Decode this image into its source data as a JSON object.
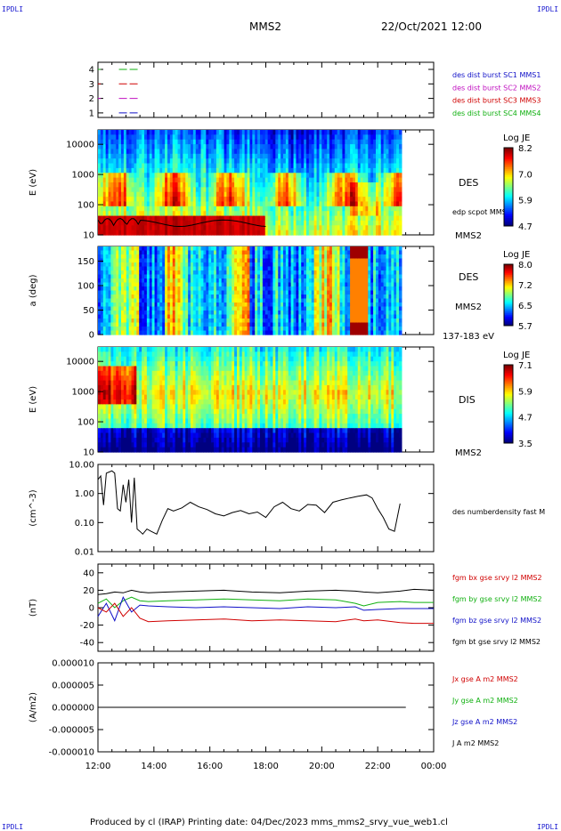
{
  "header": {
    "corner_label": "IPDLI",
    "spacecraft": "MMS2",
    "datetime": "22/Oct/2021 12:00"
  },
  "footer": {
    "text": "Produced by cl (IRAP)   Printing date: 04/Dec/2023   mms_mms2_srvy_vue_web1.cl"
  },
  "colors": {
    "c1": "#1010c8",
    "c2": "#c010c0",
    "c3": "#d00000",
    "c4": "#10b010",
    "black": "#000000"
  },
  "chart_data": [
    {
      "type": "line",
      "panel": "burst-availability",
      "yticks": [
        "4",
        "3",
        "2",
        "1"
      ],
      "legend": [
        {
          "name": "des dist burst SC1 MMS1",
          "color_key": "c1"
        },
        {
          "name": "des dist burst SC2 MMS2",
          "color_key": "c2"
        },
        {
          "name": "des dist burst SC3 MMS3",
          "color_key": "c3"
        },
        {
          "name": "des dist burst SC4 MMS4",
          "color_key": "c4"
        }
      ],
      "series": [
        {
          "level": 4,
          "color_key": "c4",
          "segments": [
            [
              12.0,
              12.1
            ],
            [
              12.75,
              13.5
            ]
          ]
        },
        {
          "level": 3,
          "color_key": "c3",
          "segments": [
            [
              12.0,
              12.1
            ],
            [
              12.75,
              13.5
            ]
          ]
        },
        {
          "level": 2,
          "color_key": "c2",
          "segments": [
            [
              12.0,
              12.1
            ],
            [
              12.75,
              13.5
            ]
          ]
        },
        {
          "level": 1,
          "color_key": "c1",
          "segments": [
            [
              12.75,
              13.5
            ]
          ]
        }
      ]
    },
    {
      "type": "heatmap",
      "panel": "des-energy",
      "ylabel": "E (eV)",
      "yscale": "log",
      "ylim": [
        10,
        30000
      ],
      "yticks": [
        "10000",
        "1000",
        "100",
        "10"
      ],
      "label": "DES",
      "overlay_label": "edp scpot MMS2",
      "sc_label": "MMS2",
      "colorbar": {
        "title": "Log JE",
        "ticks": [
          "8.2",
          "7.0",
          "5.9",
          "4.7"
        ]
      }
    },
    {
      "type": "heatmap",
      "panel": "des-pitch-angle",
      "ylabel": "a (deg)",
      "ylim": [
        0,
        180
      ],
      "yticks": [
        "150",
        "100",
        "50",
        "0"
      ],
      "label": "DES",
      "sc_label": "MMS2",
      "energy_label": "137-183 eV",
      "colorbar": {
        "title": "Log JE",
        "ticks": [
          "8.0",
          "7.2",
          "6.5",
          "5.7"
        ]
      }
    },
    {
      "type": "heatmap",
      "panel": "dis-energy",
      "ylabel": "E (eV)",
      "yscale": "log",
      "ylim": [
        10,
        30000
      ],
      "yticks": [
        "10000",
        "1000",
        "100",
        "10"
      ],
      "label": "DIS",
      "sc_label": "MMS2",
      "colorbar": {
        "title": "Log JE",
        "ticks": [
          "7.1",
          "5.9",
          "4.7",
          "3.5"
        ]
      }
    },
    {
      "type": "line",
      "panel": "density",
      "ylabel": "(cm^-3)",
      "yscale": "log",
      "ylim": [
        0.01,
        10
      ],
      "yticks": [
        "10.00",
        "1.00",
        "0.10",
        "0.01"
      ],
      "legend": [
        {
          "name": "des numberdensity fast M",
          "color_key": "black"
        }
      ],
      "x": [
        12.0,
        12.1,
        12.2,
        12.3,
        12.4,
        12.5,
        12.6,
        12.7,
        12.8,
        12.9,
        13.0,
        13.1,
        13.2,
        13.3,
        13.4,
        13.5,
        13.6,
        13.75,
        13.9,
        14.1,
        14.3,
        14.5,
        14.7,
        15.0,
        15.3,
        15.6,
        15.9,
        16.2,
        16.5,
        16.8,
        17.1,
        17.4,
        17.7,
        18.0,
        18.3,
        18.6,
        18.9,
        19.2,
        19.5,
        19.8,
        20.1,
        20.4,
        20.7,
        21.0,
        21.3,
        21.6,
        21.8,
        22.0,
        22.2,
        22.4,
        22.6,
        22.8
      ],
      "values": [
        3.0,
        4.0,
        0.4,
        5.0,
        5.5,
        6.0,
        5.0,
        0.3,
        0.25,
        2.0,
        0.5,
        3.0,
        0.1,
        3.5,
        0.06,
        0.05,
        0.04,
        0.06,
        0.05,
        0.04,
        0.12,
        0.3,
        0.25,
        0.32,
        0.5,
        0.35,
        0.28,
        0.2,
        0.17,
        0.22,
        0.26,
        0.2,
        0.23,
        0.15,
        0.35,
        0.5,
        0.3,
        0.25,
        0.42,
        0.4,
        0.22,
        0.5,
        0.6,
        0.7,
        0.8,
        0.9,
        0.7,
        0.3,
        0.15,
        0.06,
        0.05,
        0.45
      ]
    },
    {
      "type": "line",
      "panel": "magnetic-field",
      "ylabel": "(nT)",
      "ylim": [
        -50,
        50
      ],
      "yticks": [
        "40",
        "20",
        "0",
        "-20",
        "-40"
      ],
      "x": [
        12.0,
        12.3,
        12.6,
        12.9,
        13.2,
        13.5,
        13.8,
        14.5,
        15.5,
        16.5,
        17.5,
        18.5,
        19.5,
        20.5,
        21.2,
        21.5,
        22.0,
        22.8,
        23.3,
        24.0
      ],
      "series": [
        {
          "name": "fgm bx gse srvy l2 MMS2",
          "color_key": "c3",
          "values": [
            0,
            -5,
            5,
            -10,
            0,
            -12,
            -16,
            -15,
            -14,
            -13,
            -15,
            -14,
            -15,
            -16,
            -13,
            -15,
            -14,
            -17,
            -18,
            -18
          ]
        },
        {
          "name": "fgm by gse srvy l2 MMS2",
          "color_key": "c4",
          "values": [
            5,
            10,
            0,
            8,
            12,
            8,
            7,
            8,
            9,
            10,
            9,
            8,
            10,
            9,
            5,
            2,
            6,
            7,
            6,
            6
          ]
        },
        {
          "name": "fgm bz gse srvy l2 MMS2",
          "color_key": "c1",
          "values": [
            -10,
            5,
            -15,
            12,
            -5,
            3,
            2,
            1,
            0,
            1,
            0,
            -1,
            1,
            0,
            1,
            -3,
            -2,
            -1,
            -1,
            -1
          ]
        },
        {
          "name": "fgm bt gse srvy l2 MMS2",
          "color_key": "black",
          "values": [
            15,
            16,
            18,
            17,
            20,
            18,
            17,
            18,
            19,
            20,
            18,
            17,
            19,
            20,
            19,
            18,
            17,
            19,
            21,
            20
          ]
        }
      ]
    },
    {
      "type": "line",
      "panel": "current-density",
      "ylabel": "(A/m2)",
      "ylim": [
        -0.0001,
        0.0001
      ],
      "yticks": [
        "0.000010",
        "0.000005",
        "0.000000",
        "-0.000005",
        "-0.000010"
      ],
      "x": [
        12.0,
        13.0,
        14.0,
        16.0,
        18.0,
        20.0,
        22.0,
        23.0
      ],
      "series": [
        {
          "name": "Jx gse A m2 MMS2",
          "color_key": "c3",
          "values": [
            0,
            0,
            0,
            0,
            0,
            0,
            0,
            0
          ]
        },
        {
          "name": "Jy gse A m2 MMS2",
          "color_key": "c4",
          "values": [
            0,
            0,
            0,
            0,
            0,
            0,
            0,
            0
          ]
        },
        {
          "name": "Jz gse A m2 MMS2",
          "color_key": "c1",
          "values": [
            0,
            0,
            0,
            0,
            0,
            0,
            0,
            0
          ]
        },
        {
          "name": "J A m2 MMS2",
          "color_key": "black",
          "values": [
            0,
            0,
            0,
            0,
            0,
            0,
            0,
            0
          ]
        }
      ]
    }
  ],
  "time_axis": {
    "range": [
      12,
      24
    ],
    "ticks": [
      "12:00",
      "14:00",
      "16:00",
      "18:00",
      "20:00",
      "22:00",
      "00:00"
    ]
  }
}
